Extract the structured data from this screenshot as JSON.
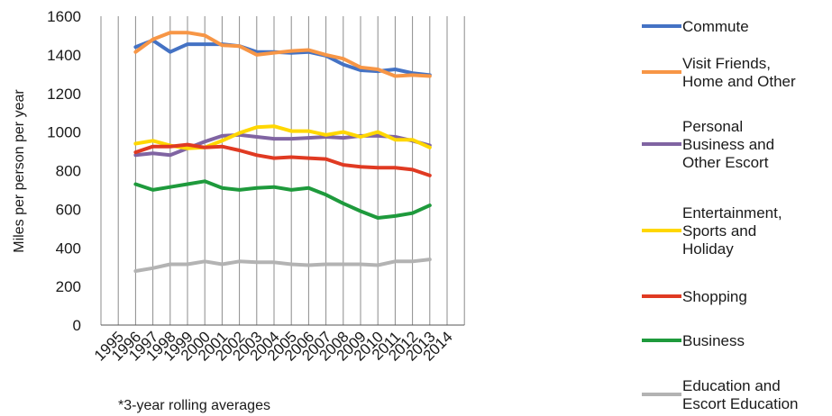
{
  "chart_data": {
    "type": "line",
    "ylabel": "Miles per person per year",
    "note": "*3-year rolling averages",
    "ylim": [
      0,
      1600
    ],
    "yticks": [
      "0",
      "200",
      "400",
      "600",
      "800",
      "1000",
      "1200",
      "1400",
      "1600"
    ],
    "categories": [
      "1995",
      "1996",
      "1997",
      "1998",
      "1999",
      "2000",
      "2001",
      "2002",
      "2003",
      "2004",
      "2005",
      "2006",
      "2007",
      "2008",
      "2009",
      "2010",
      "2011",
      "2012",
      "2013",
      "2014"
    ],
    "grid": "vertical",
    "legend_position": "right",
    "series": [
      {
        "name": "Commute",
        "legend_lines": [
          "Commute"
        ],
        "color": "#4472c4",
        "values": [
          null,
          1440,
          1475,
          1415,
          1455,
          1455,
          1455,
          1445,
          1415,
          1415,
          1410,
          1415,
          1395,
          1350,
          1320,
          1315,
          1325,
          1305,
          1295,
          null
        ]
      },
      {
        "name": "Visit Friends, Home and Other",
        "legend_lines": [
          "Visit Friends,",
          "Home and Other"
        ],
        "color": "#f79646",
        "values": [
          null,
          1415,
          1480,
          1515,
          1515,
          1500,
          1450,
          1445,
          1400,
          1410,
          1420,
          1425,
          1400,
          1380,
          1335,
          1325,
          1290,
          1295,
          1290,
          null
        ]
      },
      {
        "name": "Personal Business and Other Escort",
        "legend_lines": [
          "Personal",
          "Business and",
          "Other Escort"
        ],
        "color": "#8064a2",
        "values": [
          null,
          880,
          890,
          880,
          915,
          950,
          980,
          985,
          975,
          965,
          965,
          970,
          975,
          970,
          980,
          980,
          975,
          955,
          930,
          null
        ]
      },
      {
        "name": "Entertainment, Sports and Holiday",
        "legend_lines": [
          "Entertainment,",
          "Sports and",
          "Holiday"
        ],
        "color": "#ffd700",
        "values": [
          null,
          940,
          955,
          930,
          915,
          920,
          955,
          995,
          1025,
          1030,
          1005,
          1005,
          985,
          1000,
          975,
          1000,
          960,
          960,
          920,
          null
        ]
      },
      {
        "name": "Shopping",
        "legend_lines": [
          "Shopping"
        ],
        "color": "#e03a22",
        "values": [
          null,
          895,
          925,
          925,
          935,
          920,
          925,
          905,
          880,
          865,
          870,
          865,
          860,
          830,
          820,
          815,
          815,
          805,
          775,
          null
        ]
      },
      {
        "name": "Business",
        "legend_lines": [
          "Business"
        ],
        "color": "#1e9a3c",
        "values": [
          null,
          730,
          700,
          715,
          730,
          745,
          710,
          700,
          710,
          715,
          700,
          710,
          675,
          630,
          590,
          555,
          565,
          580,
          620,
          null
        ]
      },
      {
        "name": "Education and Escort Education",
        "legend_lines": [
          "Education and",
          "Escort Education"
        ],
        "color": "#b3b3b3",
        "values": [
          null,
          280,
          295,
          315,
          315,
          330,
          315,
          330,
          325,
          325,
          315,
          310,
          315,
          315,
          315,
          310,
          330,
          330,
          340,
          null
        ]
      }
    ]
  }
}
